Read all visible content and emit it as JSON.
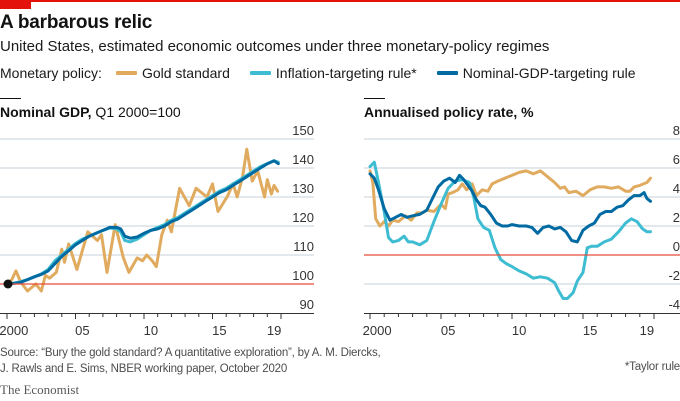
{
  "header": {
    "title": "A barbarous relic",
    "subtitle": "United States, estimated economic outcomes under three monetary-policy regimes"
  },
  "legend": {
    "lead": "Monetary policy:",
    "items": [
      {
        "label": "Gold standard",
        "color": "#e0ab5f"
      },
      {
        "label": "Inflation-targeting rule*",
        "color": "#3ebcd2"
      },
      {
        "label": "Nominal-GDP-targeting rule",
        "color": "#006ba2"
      }
    ]
  },
  "colors": {
    "gold": "#e0ab5f",
    "inflation": "#3ebcd2",
    "ngdp": "#006ba2",
    "baseline": "#e64e3a",
    "grid": "#c5d0d8",
    "axis": "#333333",
    "brand_red": "#e3120b"
  },
  "chart_data": [
    {
      "type": "line",
      "title_bold": "Nominal GDP,",
      "title_rest": " Q1 2000=100",
      "xlabel": "",
      "ylabel": "",
      "xlim": [
        2000,
        2020
      ],
      "ylim": [
        90,
        150
      ],
      "yticks": [
        150,
        140,
        130,
        120,
        110,
        100,
        90
      ],
      "baseline": 100,
      "xtick_labels": [
        {
          "year": 2000,
          "label": "2000"
        },
        {
          "year": 2005,
          "label": "05"
        },
        {
          "year": 2010,
          "label": "10"
        },
        {
          "year": 2015,
          "label": "15"
        },
        {
          "year": 2019,
          "label": "19"
        }
      ],
      "grid": true,
      "y_axis_side": "right",
      "start_marker": {
        "x": 2000.0,
        "y": 100
      },
      "series": [
        {
          "name": "Gold standard",
          "key": "gold",
          "x": [
            2000.0,
            2000.35,
            2000.65,
            2001.0,
            2001.5,
            2002.1,
            2002.5,
            2002.8,
            2003.1,
            2003.6,
            2004.0,
            2004.2,
            2004.5,
            2005.1,
            2005.9,
            2006.6,
            2006.9,
            2007.3,
            2007.9,
            2008.5,
            2008.9,
            2009.5,
            2009.9,
            2010.2,
            2010.6,
            2010.9,
            2011.3,
            2011.7,
            2012.0,
            2012.6,
            2013.3,
            2013.8,
            2014.6,
            2015.0,
            2015.4,
            2016.1,
            2016.5,
            2016.8,
            2017.2,
            2017.5,
            2017.9,
            2018.3,
            2018.8,
            2019.0,
            2019.3,
            2019.5,
            2019.75
          ],
          "y": [
            100,
            101.5,
            104.5,
            100.7,
            97.6,
            100,
            97.6,
            103,
            102,
            104,
            112,
            107.5,
            113.8,
            105,
            118,
            115,
            117,
            104,
            120.5,
            109,
            104,
            109,
            108,
            110,
            108,
            106,
            117,
            122,
            118,
            133,
            127,
            133,
            130,
            134.5,
            125,
            130.3,
            134.6,
            130,
            137,
            146.5,
            135.5,
            139,
            130,
            136,
            131,
            134,
            132
          ]
        },
        {
          "name": "Inflation-targeting rule*",
          "key": "inflation",
          "x": [
            2000.0,
            2000.5,
            2001.0,
            2001.5,
            2002.0,
            2002.5,
            2003.0,
            2003.5,
            2004.0,
            2004.5,
            2005.0,
            2005.5,
            2006.0,
            2006.5,
            2007.0,
            2007.5,
            2008.0,
            2008.3,
            2008.6,
            2009.0,
            2009.5,
            2010.0,
            2010.5,
            2011.0,
            2011.5,
            2012.0,
            2012.5,
            2013.0,
            2013.5,
            2014.0,
            2014.5,
            2015.0,
            2015.5,
            2016.0,
            2016.5,
            2017.0,
            2017.5,
            2018.0,
            2018.5,
            2019.0,
            2019.5,
            2019.8
          ],
          "y": [
            100,
            100.3,
            100.8,
            101.5,
            102.5,
            103.5,
            105,
            108,
            110,
            112,
            114,
            115.5,
            116.5,
            117.5,
            118.5,
            119.3,
            119,
            118,
            115,
            114.5,
            115.5,
            117,
            118.5,
            119.5,
            120.5,
            122,
            123,
            124.5,
            126,
            127.5,
            129,
            130.5,
            132,
            133,
            134.5,
            136,
            137.5,
            139,
            140.5,
            141.5,
            142.5,
            142
          ]
        },
        {
          "name": "Nominal-GDP-targeting rule",
          "key": "ngdp",
          "x": [
            2000.0,
            2000.5,
            2001.0,
            2001.5,
            2002.0,
            2002.5,
            2003.0,
            2003.5,
            2004.0,
            2004.5,
            2005.0,
            2005.5,
            2006.0,
            2006.5,
            2007.0,
            2007.5,
            2008.0,
            2008.3,
            2008.6,
            2009.0,
            2009.5,
            2010.0,
            2010.5,
            2011.0,
            2011.5,
            2012.0,
            2012.5,
            2013.0,
            2013.5,
            2014.0,
            2014.5,
            2015.0,
            2015.5,
            2016.0,
            2016.5,
            2017.0,
            2017.5,
            2018.0,
            2018.5,
            2019.0,
            2019.5,
            2019.8
          ],
          "y": [
            100,
            100.2,
            100.6,
            101.5,
            102.5,
            103.3,
            104.5,
            107,
            109.5,
            111.5,
            113.5,
            115,
            116.5,
            117.5,
            118.5,
            119.5,
            119.5,
            119,
            116.5,
            115.8,
            116.2,
            117.5,
            118.5,
            119,
            120,
            121.5,
            122.5,
            124,
            125.5,
            127,
            128.5,
            130,
            131.5,
            132.5,
            134,
            135.5,
            137,
            138.5,
            140,
            141.5,
            142.5,
            141.5
          ]
        }
      ]
    },
    {
      "type": "line",
      "title_bold": "Annualised policy rate, %",
      "title_rest": "",
      "xlabel": "",
      "ylabel": "",
      "xlim": [
        2000,
        2020
      ],
      "ylim": [
        -4,
        8
      ],
      "yticks": [
        8,
        6,
        4,
        2,
        0,
        -2,
        -4
      ],
      "baseline": 0,
      "xtick_labels": [
        {
          "year": 2000,
          "label": "2000"
        },
        {
          "year": 2005,
          "label": "05"
        },
        {
          "year": 2010,
          "label": "10"
        },
        {
          "year": 2015,
          "label": "15"
        },
        {
          "year": 2019,
          "label": "19"
        }
      ],
      "grid": true,
      "y_axis_side": "right",
      "series": [
        {
          "name": "Gold standard",
          "key": "gold",
          "x": [
            2000.0,
            2000.2,
            2000.4,
            2000.7,
            2001.0,
            2001.3,
            2001.6,
            2002.0,
            2002.5,
            2002.9,
            2003.3,
            2003.7,
            2004.0,
            2004.5,
            2005.0,
            2005.3,
            2005.5,
            2005.8,
            2006.2,
            2006.5,
            2006.8,
            2007.2,
            2007.5,
            2007.9,
            2008.3,
            2008.6,
            2009.0,
            2009.5,
            2010.0,
            2010.5,
            2011.0,
            2011.5,
            2012.0,
            2012.5,
            2013.0,
            2013.4,
            2013.7,
            2014.0,
            2014.5,
            2015.0,
            2015.5,
            2016.0,
            2016.5,
            2017.0,
            2017.5,
            2018.0,
            2018.3,
            2018.6,
            2019.0,
            2019.5,
            2019.75
          ],
          "y": [
            5.8,
            5.0,
            2.5,
            2.0,
            2.3,
            2.0,
            2.4,
            2.3,
            2.7,
            2.4,
            2.9,
            2.9,
            3.1,
            3.0,
            3.5,
            3.2,
            4.2,
            4.3,
            4.5,
            4.9,
            4.5,
            4.9,
            4.1,
            4.5,
            4.4,
            4.9,
            5.1,
            5.3,
            5.5,
            5.7,
            5.8,
            5.6,
            5.8,
            5.4,
            5.0,
            4.6,
            4.7,
            4.3,
            4.4,
            4.1,
            4.5,
            4.7,
            4.7,
            4.6,
            4.7,
            4.4,
            4.4,
            4.7,
            4.8,
            5.0,
            5.3
          ]
        },
        {
          "name": "Inflation-targeting rule*",
          "key": "inflation",
          "x": [
            2000.0,
            2000.3,
            2000.6,
            2001.0,
            2001.3,
            2001.6,
            2002.0,
            2002.4,
            2002.7,
            2003.0,
            2003.5,
            2004.0,
            2004.5,
            2005.0,
            2005.5,
            2006.0,
            2006.5,
            2007.0,
            2007.3,
            2007.6,
            2008.0,
            2008.4,
            2008.8,
            2009.2,
            2009.6,
            2010.0,
            2010.5,
            2011.0,
            2011.5,
            2012.0,
            2012.5,
            2013.0,
            2013.3,
            2013.6,
            2013.9,
            2014.3,
            2014.6,
            2015.0,
            2015.3,
            2015.6,
            2016.0,
            2016.5,
            2017.0,
            2017.5,
            2018.0,
            2018.4,
            2018.8,
            2019.2,
            2019.5,
            2019.75
          ],
          "y": [
            6.1,
            6.4,
            5.0,
            3.0,
            1.2,
            0.9,
            1.0,
            1.3,
            0.9,
            0.9,
            0.7,
            1.0,
            2.3,
            3.5,
            4.6,
            5.1,
            5.2,
            5.0,
            4.0,
            2.5,
            1.9,
            1.7,
            0.5,
            -0.3,
            -0.6,
            -0.8,
            -1.1,
            -1.3,
            -1.6,
            -1.5,
            -1.6,
            -1.9,
            -2.5,
            -3.0,
            -3.0,
            -2.6,
            -1.8,
            -1.2,
            0.5,
            0.6,
            0.6,
            0.9,
            1.1,
            1.6,
            2.2,
            2.5,
            2.3,
            1.8,
            1.6,
            1.6
          ]
        },
        {
          "name": "Nominal-GDP-targeting rule",
          "key": "ngdp",
          "x": [
            2000.0,
            2000.3,
            2000.6,
            2001.0,
            2001.4,
            2001.8,
            2002.2,
            2002.6,
            2003.0,
            2003.5,
            2004.0,
            2004.4,
            2004.8,
            2005.2,
            2005.6,
            2006.0,
            2006.3,
            2006.6,
            2006.9,
            2007.2,
            2007.5,
            2007.8,
            2008.1,
            2008.5,
            2008.9,
            2009.3,
            2009.7,
            2010.0,
            2010.5,
            2011.0,
            2011.4,
            2011.8,
            2012.2,
            2012.6,
            2013.0,
            2013.4,
            2013.8,
            2014.2,
            2014.6,
            2015.0,
            2015.4,
            2015.8,
            2016.2,
            2016.6,
            2017.0,
            2017.4,
            2017.8,
            2018.2,
            2018.6,
            2019.0,
            2019.3,
            2019.5,
            2019.75
          ],
          "y": [
            5.6,
            5.3,
            4.5,
            3.2,
            2.4,
            2.6,
            2.8,
            2.6,
            2.7,
            2.8,
            3.1,
            3.9,
            4.7,
            5.1,
            5.3,
            5.0,
            5.5,
            5.2,
            4.8,
            4.4,
            3.8,
            3.4,
            3.3,
            2.8,
            2.2,
            2.0,
            2.0,
            2.1,
            2.0,
            2.0,
            1.9,
            1.5,
            1.9,
            2.0,
            1.8,
            1.9,
            1.6,
            1.0,
            0.9,
            1.7,
            2.0,
            2.2,
            2.8,
            3.0,
            3.0,
            3.3,
            3.4,
            3.8,
            4.1,
            4.1,
            4.3,
            3.9,
            3.7
          ]
        }
      ]
    }
  ],
  "footer": {
    "source_line1": "Source: “Bury the gold standard? A quantitative exploration”, by A. M. Diercks,",
    "source_line2": "J. Rawls and E. Sims, NBER working paper, October 2020",
    "footnote": "*Taylor rule",
    "brand": "The Economist"
  }
}
